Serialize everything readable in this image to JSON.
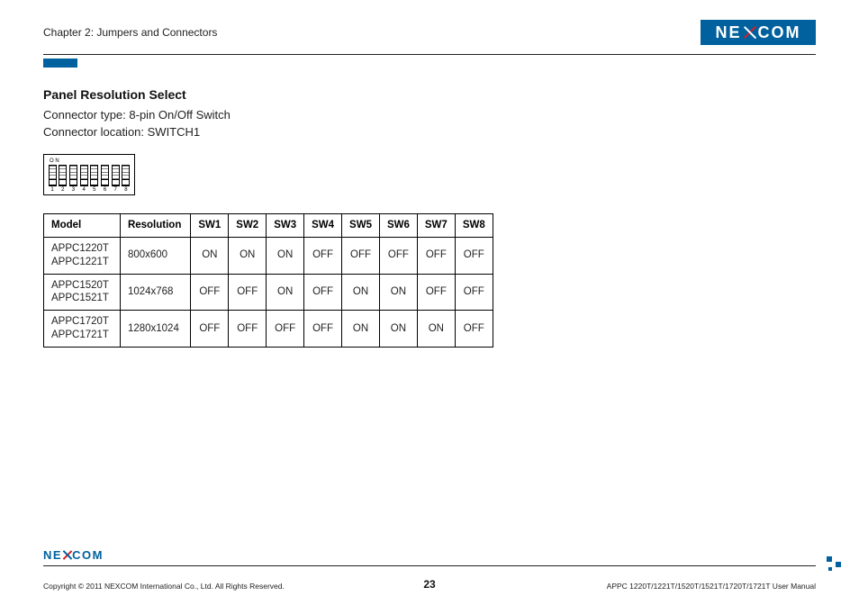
{
  "header": {
    "chapter": "Chapter 2: Jumpers and Connectors",
    "logo_text_left": "NE",
    "logo_text_right": "COM"
  },
  "section": {
    "title": "Panel Resolution Select",
    "connector_type": "Connector type: 8-pin On/Off Switch",
    "connector_location": "Connector location: SWITCH1"
  },
  "dip": {
    "on_label": "O N",
    "count": 8,
    "numbers": [
      "1",
      "2",
      "3",
      "4",
      "5",
      "6",
      "7",
      "8"
    ]
  },
  "table": {
    "headers": [
      "Model",
      "Resolution",
      "SW1",
      "SW2",
      "SW3",
      "SW4",
      "SW5",
      "SW6",
      "SW7",
      "SW8"
    ],
    "rows": [
      {
        "model": [
          "APPC1220T",
          "APPC1221T"
        ],
        "resolution": "800x600",
        "sw": [
          "ON",
          "ON",
          "ON",
          "OFF",
          "OFF",
          "OFF",
          "OFF",
          "OFF"
        ]
      },
      {
        "model": [
          "APPC1520T",
          "APPC1521T"
        ],
        "resolution": "1024x768",
        "sw": [
          "OFF",
          "OFF",
          "ON",
          "OFF",
          "ON",
          "ON",
          "OFF",
          "OFF"
        ]
      },
      {
        "model": [
          "APPC1720T",
          "APPC1721T"
        ],
        "resolution": "1280x1024",
        "sw": [
          "OFF",
          "OFF",
          "OFF",
          "OFF",
          "ON",
          "ON",
          "ON",
          "OFF"
        ]
      }
    ]
  },
  "footer": {
    "copyright": "Copyright © 2011 NEXCOM International Co., Ltd. All Rights Reserved.",
    "page": "23",
    "docname": "APPC 1220T/1221T/1520T/1521T/1720T/1721T User Manual",
    "logo_text_left": "NE",
    "logo_text_right": "COM"
  },
  "colors": {
    "brand_blue": "#00619e",
    "brand_red": "#d02026",
    "rule": "#222222",
    "text": "#222222"
  }
}
